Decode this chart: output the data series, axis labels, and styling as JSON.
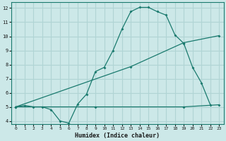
{
  "xlabel": "Humidex (Indice chaleur)",
  "xlim": [
    -0.5,
    23.5
  ],
  "ylim": [
    3.8,
    12.4
  ],
  "xticks": [
    0,
    1,
    2,
    3,
    4,
    5,
    6,
    7,
    8,
    9,
    10,
    11,
    12,
    13,
    14,
    15,
    16,
    17,
    18,
    19,
    20,
    21,
    22,
    23
  ],
  "yticks": [
    4,
    5,
    6,
    7,
    8,
    9,
    10,
    11,
    12
  ],
  "bg_color": "#cce8e8",
  "grid_color": "#b0d4d4",
  "line_color": "#1a7a6e",
  "curve1_x": [
    0,
    1,
    2,
    3,
    4,
    5,
    6,
    7,
    8,
    9,
    10,
    11,
    12,
    13,
    14,
    15,
    16,
    17,
    18,
    19,
    20,
    21,
    22
  ],
  "curve1_y": [
    5.0,
    5.1,
    5.0,
    5.0,
    4.8,
    4.0,
    3.85,
    5.2,
    5.9,
    7.5,
    7.8,
    9.0,
    10.5,
    11.75,
    12.05,
    12.05,
    11.75,
    11.5,
    10.1,
    9.5,
    7.8,
    6.7,
    5.15
  ],
  "curve2_x": [
    0,
    13,
    19,
    23
  ],
  "curve2_y": [
    5.0,
    7.85,
    9.55,
    10.05
  ],
  "curve3_x": [
    0,
    9,
    19,
    23
  ],
  "curve3_y": [
    5.0,
    5.0,
    5.0,
    5.15
  ]
}
